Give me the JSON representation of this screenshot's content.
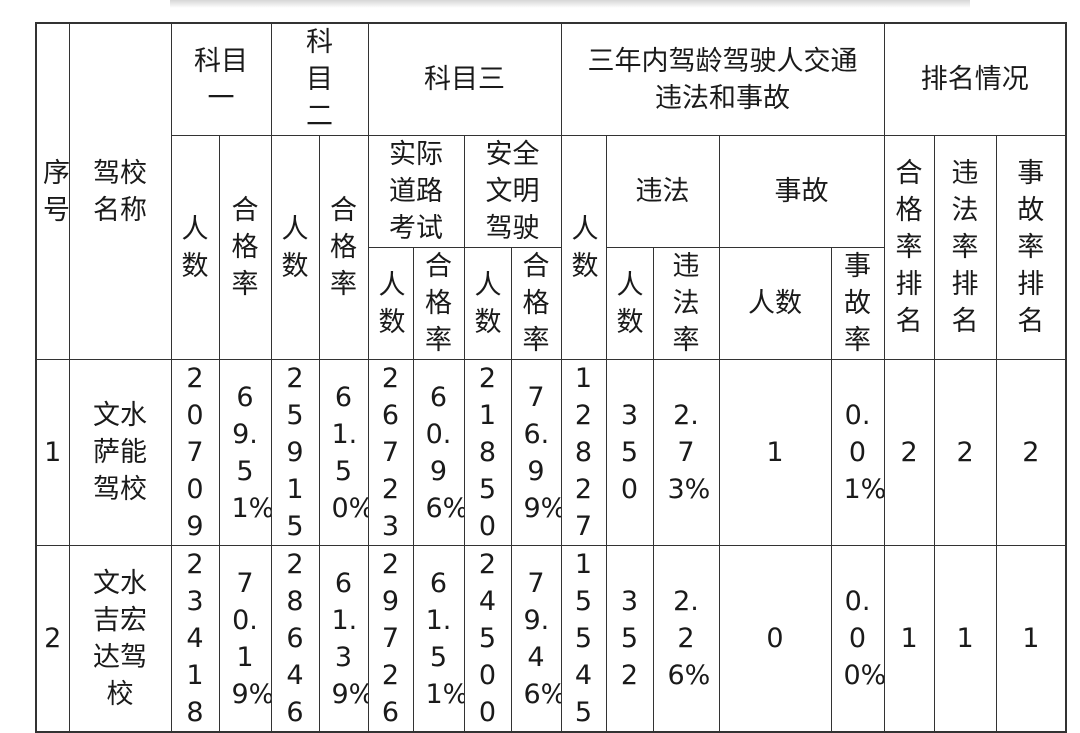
{
  "header": {
    "seq": "序号",
    "school": "驾校名称",
    "subject1": "科目一",
    "subject2": "科目二",
    "subject3": "科目三",
    "violations_group": "三年内驾龄驾驶人交通违法和事故",
    "ranking": "排名情况",
    "count": "人数",
    "pass_rate": "合格率",
    "road_test": "实际道路考试",
    "safe_driving": "安全文明驾驶",
    "violation": "违法",
    "accident": "事故",
    "violation_rate": "违法率",
    "accident_rate": "事故率",
    "pass_rank": "合格率排名",
    "violation_rank": "违法率排名",
    "accident_rank": "事故率排名"
  },
  "rows": [
    {
      "seq": "1",
      "name": "文水萨能驾校",
      "s1_count": "20709",
      "s1_rate": "69.51%",
      "s2_count": "25915",
      "s2_rate": "61.50%",
      "s3a_count": "26723",
      "s3a_rate": "60.96%",
      "s3b_count": "21850",
      "s3b_rate": "76.99%",
      "drivers": "12827",
      "viol_count": "350",
      "viol_rate": "2.73%",
      "acc_count": "1",
      "acc_rate": "0.01%",
      "rank_pass": "2",
      "rank_viol": "2",
      "rank_acc": "2"
    },
    {
      "seq": "2",
      "name": "文水吉宏达驾校",
      "s1_count": "23418",
      "s1_rate": "70.19%",
      "s2_count": "28646",
      "s2_rate": "61.39%",
      "s3a_count": "29726",
      "s3a_rate": "61.51%",
      "s3b_count": "24500",
      "s3b_rate": "79.46%",
      "drivers": "15545",
      "viol_count": "352",
      "viol_rate": "2.26%",
      "acc_count": "0",
      "acc_rate": "0.00%",
      "rank_pass": "1",
      "rank_viol": "1",
      "rank_acc": "1"
    }
  ]
}
